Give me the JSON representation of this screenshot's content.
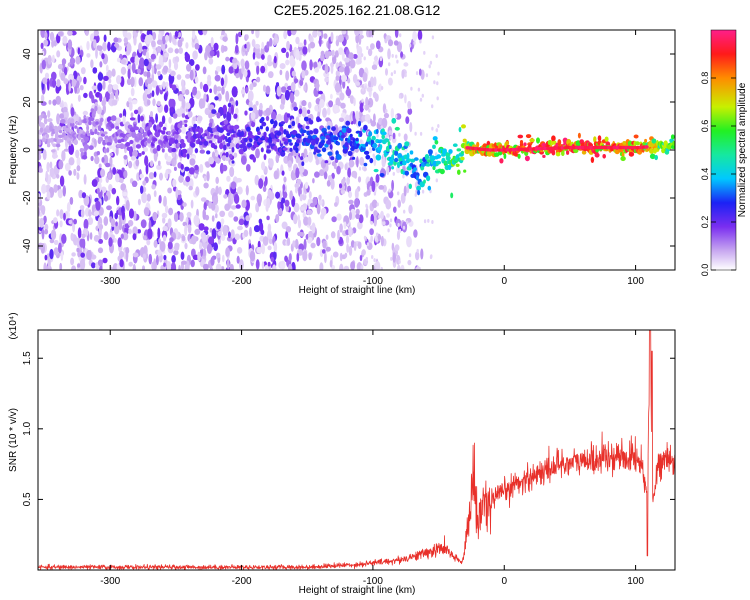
{
  "title": "C2E5.2025.162.21.08.G12",
  "chart_data": [
    {
      "type": "heatmap",
      "xlabel": "Height of straight line (km)",
      "ylabel": "Frequency (Hz)",
      "xlim": [
        -355,
        130
      ],
      "ylim": [
        -50,
        50
      ],
      "x_ticks": [
        -300,
        -200,
        -100,
        0,
        100
      ],
      "x_tick_labels": [
        "-300",
        "-200",
        "-100",
        "0",
        "100"
      ],
      "y_ticks": [
        -40,
        -20,
        0,
        20,
        40
      ],
      "y_tick_labels": [
        "-40",
        "-20",
        "0",
        "20",
        "40"
      ],
      "colorbar": {
        "label": "Normalized spectral amplitude",
        "range": [
          0,
          1
        ],
        "ticks": [
          0.0,
          0.2,
          0.4,
          0.6,
          0.8
        ],
        "tick_labels": [
          "0.0",
          "0.2",
          "0.4",
          "0.6",
          "0.8"
        ],
        "colormap": [
          "#ffffff",
          "#c8a8f0",
          "#7a2ef0",
          "#1c22f5",
          "#00c8ff",
          "#16e8a0",
          "#22f022",
          "#c8f000",
          "#ff8c00",
          "#ff1a1a",
          "#ff1f8a"
        ]
      },
      "ridge": {
        "x": [
          -355,
          -260,
          -200,
          -160,
          -120,
          -100,
          -80,
          -65,
          -55,
          -40,
          -30,
          -10,
          0,
          50,
          100,
          130
        ],
        "y": [
          8,
          5,
          5,
          6,
          4,
          3,
          -3,
          -10,
          -4,
          -5,
          1,
          0,
          0,
          1,
          1,
          2
        ],
        "description_amplitude": [
          0.1,
          0.2,
          0.25,
          0.3,
          0.35,
          0.45,
          0.5,
          0.45,
          0.5,
          0.6,
          0.7,
          0.85,
          0.9,
          0.9,
          0.85,
          0.6
        ]
      },
      "noise_extent_km": -110
    },
    {
      "type": "line",
      "xlabel": "Height of straight line (km)",
      "ylabel": "SNR (10 * v/v)",
      "y_multiplier": "(x10⁴)",
      "xlim": [
        -355,
        130
      ],
      "ylim": [
        0,
        1.7
      ],
      "x_ticks": [
        -300,
        -200,
        -100,
        0,
        100
      ],
      "x_tick_labels": [
        "-300",
        "-200",
        "-100",
        "0",
        "100"
      ],
      "y_ticks": [
        0.5,
        1.0,
        1.5
      ],
      "y_tick_labels": [
        "0.5",
        "1.0",
        "1.5"
      ],
      "color": "#e8302a",
      "x": [
        -355,
        -250,
        -150,
        -110,
        -80,
        -60,
        -45,
        -40,
        -32,
        -30,
        -26,
        -24,
        -20,
        -18,
        -12,
        -5,
        0,
        10,
        20,
        30,
        40,
        60,
        80,
        100,
        105,
        109,
        111,
        113,
        116,
        120,
        130
      ],
      "y": [
        0.02,
        0.02,
        0.02,
        0.04,
        0.07,
        0.12,
        0.16,
        0.1,
        0.05,
        0.18,
        0.4,
        0.72,
        0.28,
        0.45,
        0.45,
        0.52,
        0.55,
        0.62,
        0.66,
        0.7,
        0.75,
        0.77,
        0.8,
        0.8,
        0.75,
        0.5,
        1.7,
        0.45,
        0.72,
        0.78,
        0.75
      ],
      "annotations": [
        {
          "label": "spike",
          "x": 111,
          "y": 1.7
        },
        {
          "label": "spike",
          "x": -24,
          "y": 0.85
        },
        {
          "label": "peak",
          "x": 75,
          "y": 1.03
        }
      ]
    }
  ]
}
